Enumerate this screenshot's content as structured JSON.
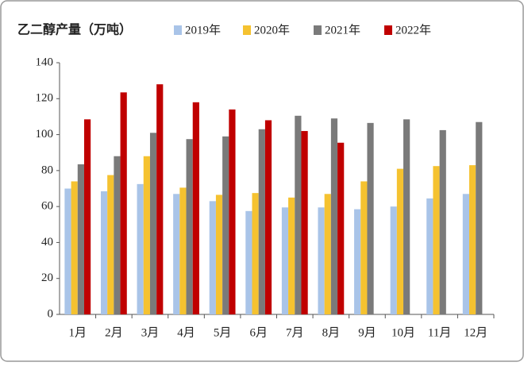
{
  "chart_data": {
    "type": "bar",
    "title": "乙二醇产量（万吨）",
    "categories": [
      "1月",
      "2月",
      "3月",
      "4月",
      "5月",
      "6月",
      "7月",
      "8月",
      "9月",
      "10月",
      "11月",
      "12月"
    ],
    "series": [
      {
        "name": "2019年",
        "color": "#a9c4e8",
        "values": [
          70,
          68.5,
          72.5,
          67,
          63,
          57.5,
          59.5,
          59.5,
          58.5,
          60,
          64.5,
          67
        ]
      },
      {
        "name": "2020年",
        "color": "#f5c230",
        "values": [
          74,
          77.5,
          88,
          70.5,
          66.5,
          67.5,
          65,
          67,
          74,
          81,
          82.5,
          83
        ]
      },
      {
        "name": "2021年",
        "color": "#7a7a7a",
        "values": [
          83.5,
          88,
          101,
          97.5,
          99,
          103,
          110.5,
          109,
          106.5,
          108.5,
          102.5,
          107
        ]
      },
      {
        "name": "2022年",
        "color": "#c00000",
        "values": [
          108.5,
          123.5,
          128,
          118,
          114,
          108,
          102,
          95.5,
          null,
          null,
          null,
          null
        ]
      }
    ],
    "ylim": [
      0,
      140
    ],
    "yticks": [
      0,
      20,
      40,
      60,
      80,
      100,
      120,
      140
    ],
    "grid": false
  }
}
